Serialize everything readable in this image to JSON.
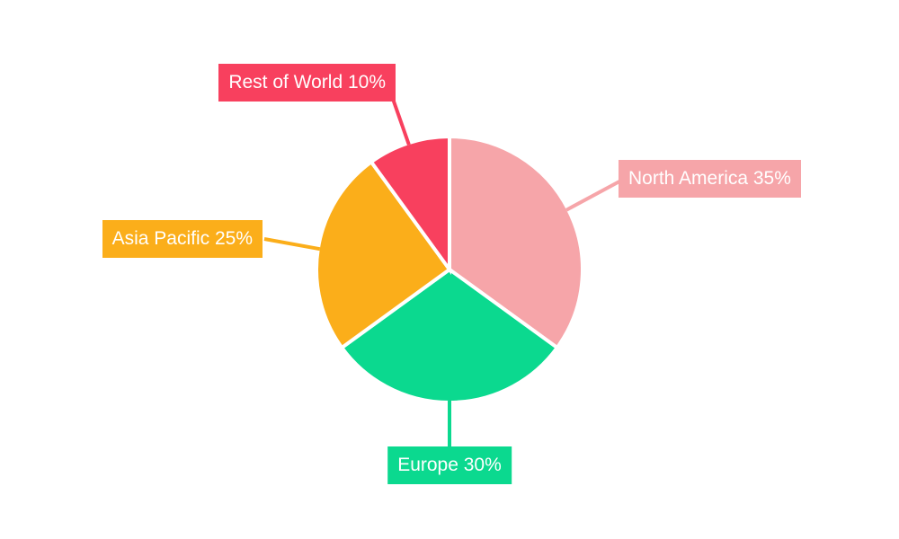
{
  "background_color": "#ffffff",
  "separator_color": "#ffffff",
  "label_text_color": "#ffffff",
  "chart_data": {
    "type": "pie",
    "title": "",
    "start_angle": "top",
    "direction": "clockwise",
    "legend_position": "none",
    "labels_as_callouts": true,
    "total": 100,
    "slices": [
      {
        "name": "North America",
        "value": 35,
        "pct_label": "35%",
        "color": "#f6a5a9",
        "label_text": "North America 35%"
      },
      {
        "name": "Europe",
        "value": 30,
        "pct_label": "30%",
        "color": "#0bd98f",
        "label_text": "Europe 30%"
      },
      {
        "name": "Asia Pacific",
        "value": 25,
        "pct_label": "25%",
        "color": "#fbae1a",
        "label_text": "Asia Pacific 25%"
      },
      {
        "name": "Rest of World",
        "value": 10,
        "pct_label": "10%",
        "color": "#f8405e",
        "label_text": "Rest of World 10%"
      }
    ]
  }
}
